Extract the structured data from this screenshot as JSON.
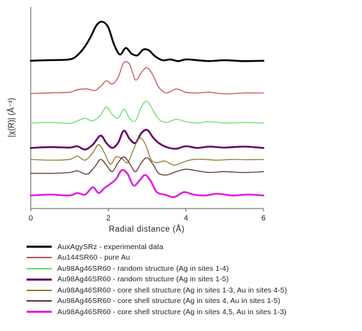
{
  "chart_data": {
    "type": "line",
    "xlabel": "Radial distance (Å)",
    "ylabel": "|χ(R)| (Å⁻³)",
    "xlim": [
      0,
      6
    ],
    "x_ticks": [
      "0",
      "2",
      "4",
      "6"
    ],
    "y_ticks_labeled": false,
    "grid": false,
    "legend_placement": "below",
    "series_offset_stacked": true,
    "series": [
      {
        "name": "AuxAgySRz  - experimental data",
        "color": "#000000",
        "width": "thick",
        "x": [
          0.0,
          0.5,
          1.0,
          1.2,
          1.4,
          1.55,
          1.7,
          1.85,
          2.0,
          2.15,
          2.3,
          2.45,
          2.6,
          2.75,
          2.9,
          3.05,
          3.2,
          3.4,
          3.6,
          3.8,
          4.0,
          4.3,
          4.6,
          5.0,
          5.5,
          6.0
        ],
        "y": [
          8.52,
          8.56,
          8.6,
          8.85,
          9.4,
          10.0,
          10.7,
          10.9,
          10.55,
          9.5,
          8.9,
          9.3,
          8.95,
          8.85,
          9.2,
          9.15,
          8.8,
          8.55,
          8.6,
          8.5,
          8.6,
          8.55,
          8.5,
          8.55,
          8.5,
          8.52
        ]
      },
      {
        "name": "Au144SR60 - pure Au",
        "color": "#c0504d",
        "width": "thin",
        "x": [
          0.0,
          0.5,
          1.0,
          1.2,
          1.45,
          1.65,
          1.8,
          1.95,
          2.1,
          2.25,
          2.4,
          2.55,
          2.7,
          2.85,
          3.0,
          3.15,
          3.3,
          3.5,
          3.75,
          4.0,
          4.3,
          4.6,
          5.0,
          5.5,
          6.0
        ],
        "y": [
          6.52,
          6.56,
          6.6,
          6.75,
          6.8,
          6.7,
          6.95,
          7.3,
          7.1,
          7.5,
          8.4,
          8.3,
          7.35,
          7.8,
          8.1,
          7.65,
          6.9,
          6.55,
          6.8,
          6.6,
          6.55,
          6.6,
          6.5,
          6.55,
          6.55
        ]
      },
      {
        "name": "Au98Ag46SR60 - random structure (Ag in sites 1-4)",
        "color": "#66dd66",
        "width": "thin",
        "x": [
          0.0,
          0.5,
          1.0,
          1.2,
          1.4,
          1.6,
          1.8,
          1.95,
          2.1,
          2.25,
          2.4,
          2.55,
          2.7,
          2.85,
          3.0,
          3.15,
          3.3,
          3.5,
          3.75,
          4.0,
          4.3,
          4.6,
          5.0,
          5.5,
          6.0
        ],
        "y": [
          4.72,
          4.75,
          4.7,
          4.85,
          5.0,
          4.85,
          5.2,
          5.7,
          5.25,
          5.0,
          5.55,
          5.0,
          4.85,
          5.7,
          6.05,
          5.5,
          4.95,
          4.75,
          4.95,
          4.8,
          4.72,
          4.8,
          4.72,
          4.75,
          4.72
        ]
      },
      {
        "name": "Au98Ag46SR60 - random structure (Ag in sites 1-5)",
        "color": "#660066",
        "width": "thick",
        "x": [
          0.0,
          0.5,
          1.0,
          1.2,
          1.4,
          1.6,
          1.8,
          1.95,
          2.1,
          2.25,
          2.4,
          2.55,
          2.7,
          2.85,
          3.0,
          3.15,
          3.3,
          3.5,
          3.75,
          4.0,
          4.3,
          4.6,
          5.0,
          5.5,
          6.0
        ],
        "y": [
          3.2,
          3.25,
          3.22,
          3.3,
          3.1,
          3.4,
          3.95,
          3.5,
          3.2,
          3.5,
          4.25,
          3.75,
          3.5,
          4.1,
          4.3,
          3.85,
          3.5,
          3.25,
          3.15,
          3.3,
          3.2,
          3.28,
          3.22,
          3.28,
          3.2
        ]
      },
      {
        "name": "Au98Ag46SR60 - core shell structure (Ag in sites 1-3, Au in sites 4-5)",
        "color": "#8c7a2a",
        "width": "thin",
        "x": [
          0.0,
          0.5,
          1.0,
          1.2,
          1.4,
          1.6,
          1.75,
          1.9,
          2.05,
          2.2,
          2.35,
          2.5,
          2.65,
          2.8,
          2.95,
          3.1,
          3.25,
          3.45,
          3.7,
          3.95,
          4.2,
          4.5,
          4.8,
          5.2,
          5.6,
          6.0
        ],
        "y": [
          2.5,
          2.45,
          2.5,
          2.7,
          2.45,
          2.9,
          3.4,
          2.9,
          2.2,
          2.65,
          2.55,
          2.3,
          3.1,
          3.8,
          3.45,
          2.5,
          2.3,
          2.4,
          2.15,
          2.35,
          2.5,
          2.5,
          2.45,
          2.5,
          2.48,
          2.5
        ]
      },
      {
        "name": "Au98Ag46SR60 - core shell structure (Ag in sites 4, Au in sites 1-5)",
        "color": "#5a3030",
        "width": "thin",
        "x": [
          0.0,
          0.5,
          1.0,
          1.2,
          1.45,
          1.65,
          1.8,
          1.95,
          2.1,
          2.25,
          2.4,
          2.55,
          2.7,
          2.85,
          3.0,
          3.15,
          3.3,
          3.5,
          3.75,
          4.0,
          4.3,
          4.6,
          5.0,
          5.5,
          6.0
        ],
        "y": [
          1.65,
          1.65,
          1.7,
          1.8,
          1.6,
          2.05,
          2.5,
          2.15,
          1.75,
          2.3,
          2.65,
          2.25,
          1.75,
          2.3,
          2.6,
          2.2,
          1.65,
          1.55,
          1.75,
          1.9,
          1.8,
          1.7,
          1.75,
          1.7,
          1.75
        ]
      },
      {
        "name": "Au98Ag46SR60 - core shell structure (Ag in sites 4,5, Au in sites 1-3)",
        "color": "#e020e0",
        "width": "thick",
        "x": [
          0.0,
          0.5,
          1.0,
          1.2,
          1.4,
          1.6,
          1.75,
          1.9,
          2.05,
          2.2,
          2.35,
          2.5,
          2.65,
          2.8,
          2.95,
          3.1,
          3.25,
          3.45,
          3.7,
          3.95,
          4.2,
          4.5,
          4.8,
          5.2,
          5.6,
          6.0
        ],
        "y": [
          0.3,
          0.35,
          0.3,
          0.45,
          0.35,
          0.8,
          0.45,
          0.75,
          1.0,
          1.3,
          1.85,
          1.6,
          0.9,
          1.2,
          1.55,
          1.15,
          0.5,
          0.35,
          0.2,
          0.5,
          0.35,
          0.3,
          0.4,
          0.3,
          0.35,
          0.3
        ]
      }
    ]
  }
}
